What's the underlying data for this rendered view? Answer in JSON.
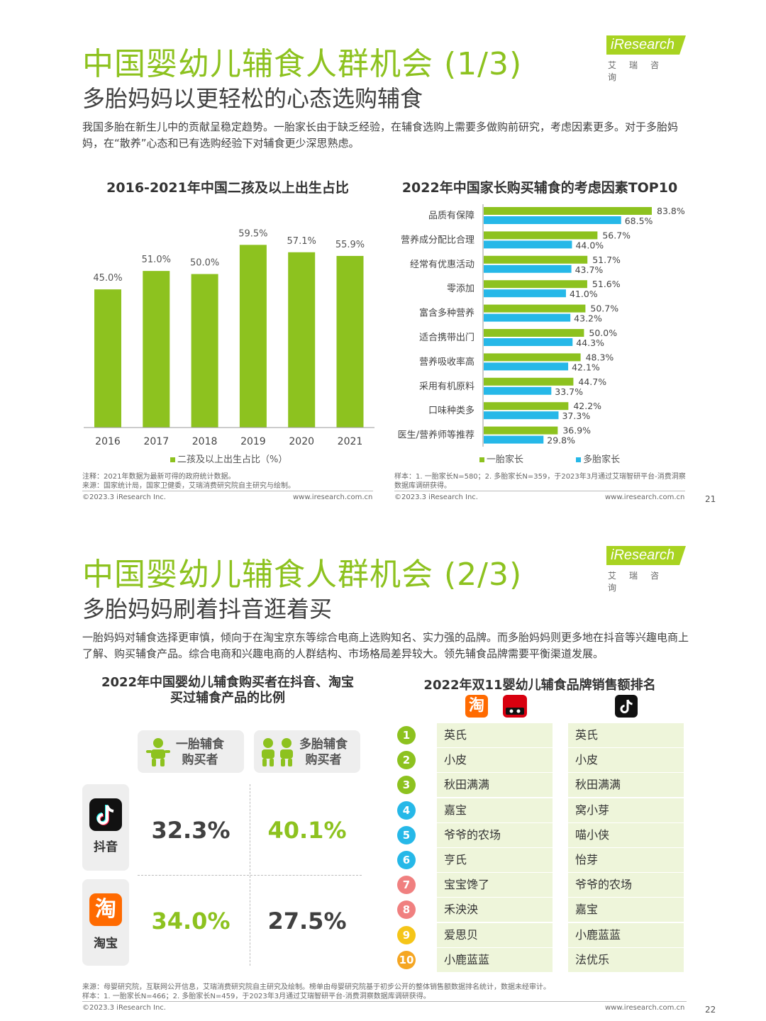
{
  "colors": {
    "green": "#8dc21f",
    "blue": "#26b8e8",
    "gray": "#404040"
  },
  "page21": {
    "title": "中国婴幼儿辅食人群机会 (1/3)",
    "subtitle": "多胎妈妈以更轻松的心态选购辅食",
    "para": "我国多胎在新生儿中的贡献呈稳定趋势。一胎家长由于缺乏经验，在辅食选购上需要多做购前研究，考虑因素更多。对于多胎妈妈，在“散养”心态和已有选购经验下对辅食更少深思熟虑。",
    "logo_text": "iResearch",
    "logo_cn": "艾瑞咨询",
    "left_note_1": "注释：2021年数据为最新可得的政府统计数据。",
    "left_note_2": "来源：国家统计局，国家卫健委，艾瑞消费研究院自主研究与绘制。",
    "right_note": "样本：1. 一胎家长N=580；2. 多胎家长N=359，于2023年3月通过艾瑞智研平台-消费洞察数据库调研获得。",
    "copyright": "©2023.3 iResearch Inc.",
    "url": "www.iresearch.com.cn",
    "page_number": "21"
  },
  "chart_data": [
    {
      "type": "bar",
      "title": "2016-2021年中国二孩及以上出生占比",
      "categories": [
        "2016",
        "2017",
        "2018",
        "2019",
        "2020",
        "2021"
      ],
      "series": [
        {
          "name": "二孩及以上出生占比（%）",
          "values": [
            45.0,
            51.0,
            50.0,
            59.5,
            57.1,
            55.9
          ]
        }
      ],
      "value_labels": [
        "45.0%",
        "51.0%",
        "50.0%",
        "59.5%",
        "57.1%",
        "55.9%"
      ],
      "legend_label": "二孩及以上出生占比（%）",
      "legend_position": "bottom",
      "ylim": [
        0,
        70
      ]
    },
    {
      "type": "bar",
      "orientation": "horizontal",
      "title": "2022年中国家长购买辅食的考虑因素TOP10",
      "categories": [
        "品质有保障",
        "营养成分配比合理",
        "经常有优惠活动",
        "零添加",
        "富含多种营养",
        "适合携带出门",
        "营养吸收率高",
        "采用有机原料",
        "口味种类多",
        "医生/营养师等推荐"
      ],
      "series": [
        {
          "name": "一胎家长",
          "values": [
            83.8,
            56.7,
            51.7,
            51.6,
            50.7,
            50.0,
            48.3,
            44.7,
            42.2,
            36.9
          ],
          "labels": [
            "83.8%",
            "56.7%",
            "51.7%",
            "51.6%",
            "50.7%",
            "50.0%",
            "48.3%",
            "44.7%",
            "42.2%",
            "36.9%"
          ]
        },
        {
          "name": "多胎家长",
          "values": [
            68.5,
            44.0,
            43.7,
            41.0,
            43.2,
            44.3,
            42.1,
            33.7,
            37.3,
            29.8
          ],
          "labels": [
            "68.5%",
            "44.0%",
            "43.7%",
            "41.0%",
            "43.2%",
            "44.3%",
            "42.1%",
            "33.7%",
            "37.3%",
            "29.8%"
          ]
        }
      ],
      "legend_position": "bottom",
      "xlim": [
        0,
        100
      ]
    }
  ],
  "page22": {
    "title": "中国婴幼儿辅食人群机会 (2/3)",
    "subtitle": "多胎妈妈刷着抖音逛着买",
    "para": "一胎妈妈对辅食选择更审慎，倾向于在淘宝京东等综合电商上选购知名、实力强的品牌。而多胎妈妈则更多地在抖音等兴趣电商上了解、购买辅食产品。综合电商和兴趣电商的人群结构、市场格局差异较大。领先辅食品牌需要平衡渠道发展。",
    "left_title_1": "2022年中国婴幼儿辅食购买者在抖音、淘宝",
    "left_title_2": "买过辅食产品的比例",
    "col1_line1": "一胎辅食",
    "col1_line2": "购买者",
    "col2_line1": "多胎辅食",
    "col2_line2": "购买者",
    "douyin_label": "抖音",
    "taobao_label": "淘宝",
    "taobao_icon_char": "淘",
    "douyin_first": "32.3%",
    "douyin_multi": "40.1%",
    "taobao_first": "34.0%",
    "taobao_multi": "27.5%",
    "right_title": "2022年双11婴幼儿辅食品牌销售额排名",
    "ranks": [
      "1",
      "2",
      "3",
      "4",
      "5",
      "6",
      "7",
      "8",
      "9",
      "10"
    ],
    "rank_colors": [
      "#8dc21f",
      "#8dc21f",
      "#8dc21f",
      "#26b8e8",
      "#26b8e8",
      "#26b8e8",
      "#f08080",
      "#f08080",
      "#f5c518",
      "#f5a623"
    ],
    "tmall_brands": [
      "英氏",
      "小皮",
      "秋田满满",
      "嘉宝",
      "爷爷的农场",
      "亨氏",
      "宝宝馋了",
      "禾泱泱",
      "爱思贝",
      "小鹿蓝蓝"
    ],
    "douyin_brands": [
      "英氏",
      "小皮",
      "秋田满满",
      "窝小芽",
      "喵小侠",
      "怡芽",
      "爷爷的农场",
      "嘉宝",
      "小鹿蓝蓝",
      "法优乐"
    ],
    "note_1": "来源：母婴研究院，互联网公开信息，艾瑞消费研究院自主研究及绘制。榜单由母婴研究院基于初步公开的整体销售额数据排名统计，数据未经审计。",
    "note_2": "样本：1. 一胎家长N=466；2. 多胎家长N=459，于2023年3月通过艾瑞智研平台-消费洞察数据库调研获得。",
    "copyright": "©2023.3 iResearch Inc.",
    "url": "www.iresearch.com.cn",
    "page_number": "22"
  }
}
